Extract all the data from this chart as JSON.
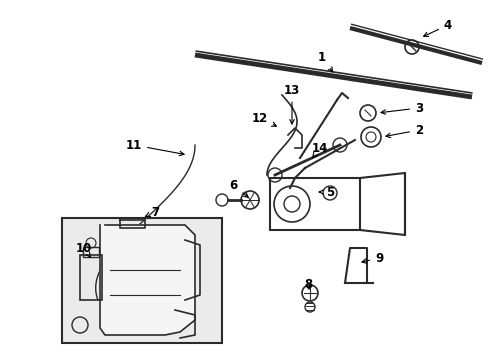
{
  "bg_color": "#ffffff",
  "lc": "#2a2a2a",
  "fontsize": 8.5,
  "figsize": [
    4.89,
    3.6
  ],
  "dpi": 100
}
